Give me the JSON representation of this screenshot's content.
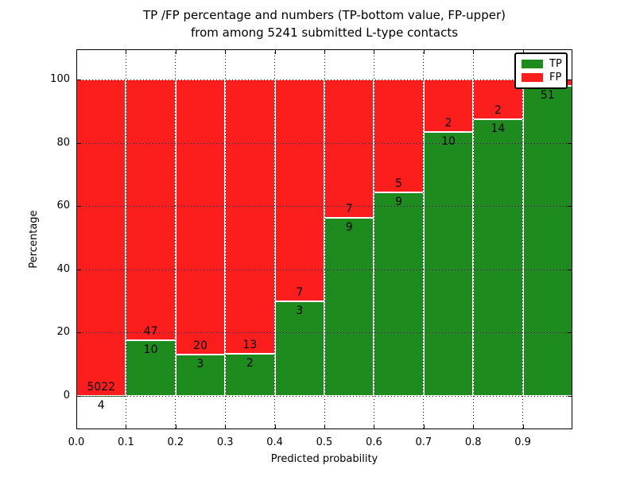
{
  "title": {
    "line1": "TP /FP percentage and numbers (TP-bottom value, FP-upper)",
    "line2": "from among 5241 submitted L-type contacts"
  },
  "axes": {
    "xlabel": "Predicted probability",
    "ylabel": "Percentage",
    "x_tick_labels": [
      "0.0",
      "0.1",
      "0.2",
      "0.3",
      "0.4",
      "0.5",
      "0.6",
      "0.7",
      "0.8",
      "0.9"
    ],
    "y_tick_labels": [
      "0",
      "20",
      "40",
      "60",
      "80",
      "100"
    ],
    "y_tick_values": [
      0,
      20,
      40,
      60,
      80,
      100
    ],
    "x_range": [
      0.0,
      1.0
    ],
    "grid_style": "dotted"
  },
  "colors": {
    "tp": "#1e8b1e",
    "fp": "#fc1d1d",
    "bar_edge": "#ffffff",
    "text": "#000000"
  },
  "legend": {
    "position": "upper-right",
    "items": [
      {
        "label": "TP",
        "color": "#1e8b1e"
      },
      {
        "label": "FP",
        "color": "#fc1d1d"
      }
    ]
  },
  "chart_data": {
    "type": "bar",
    "stacked": true,
    "units": "percent",
    "title": "TP /FP percentage and numbers (TP-bottom value, FP-upper) from among 5241 submitted L-type contacts",
    "xlabel": "Predicted probability",
    "ylabel": "Percentage",
    "ylim": [
      0,
      100
    ],
    "bin_width": 0.1,
    "series_names": [
      "TP",
      "FP"
    ],
    "bins": [
      {
        "x_start": 0.0,
        "tp_count": 4,
        "fp_count": 5022,
        "tp_percent": 0.08,
        "fp_percent": 99.92,
        "fp_label_visible": true
      },
      {
        "x_start": 0.1,
        "tp_count": 10,
        "fp_count": 47,
        "tp_percent": 17.54,
        "fp_percent": 82.46,
        "fp_label_visible": true
      },
      {
        "x_start": 0.2,
        "tp_count": 3,
        "fp_count": 20,
        "tp_percent": 13.04,
        "fp_percent": 86.96,
        "fp_label_visible": true
      },
      {
        "x_start": 0.3,
        "tp_count": 2,
        "fp_count": 13,
        "tp_percent": 13.33,
        "fp_percent": 86.67,
        "fp_label_visible": true
      },
      {
        "x_start": 0.4,
        "tp_count": 3,
        "fp_count": 7,
        "tp_percent": 30.0,
        "fp_percent": 70.0,
        "fp_label_visible": true
      },
      {
        "x_start": 0.5,
        "tp_count": 9,
        "fp_count": 7,
        "tp_percent": 56.25,
        "fp_percent": 43.75,
        "fp_label_visible": true
      },
      {
        "x_start": 0.6,
        "tp_count": 9,
        "fp_count": 5,
        "tp_percent": 64.29,
        "fp_percent": 35.71,
        "fp_label_visible": true
      },
      {
        "x_start": 0.7,
        "tp_count": 10,
        "fp_count": 2,
        "tp_percent": 83.33,
        "fp_percent": 16.67,
        "fp_label_visible": true
      },
      {
        "x_start": 0.8,
        "tp_count": 14,
        "fp_count": 2,
        "tp_percent": 87.5,
        "fp_percent": 12.5,
        "fp_label_visible": true
      },
      {
        "x_start": 0.9,
        "tp_count": 51,
        "fp_count": null,
        "tp_percent": 98.08,
        "fp_percent": 1.92,
        "fp_label_visible": false
      }
    ]
  }
}
